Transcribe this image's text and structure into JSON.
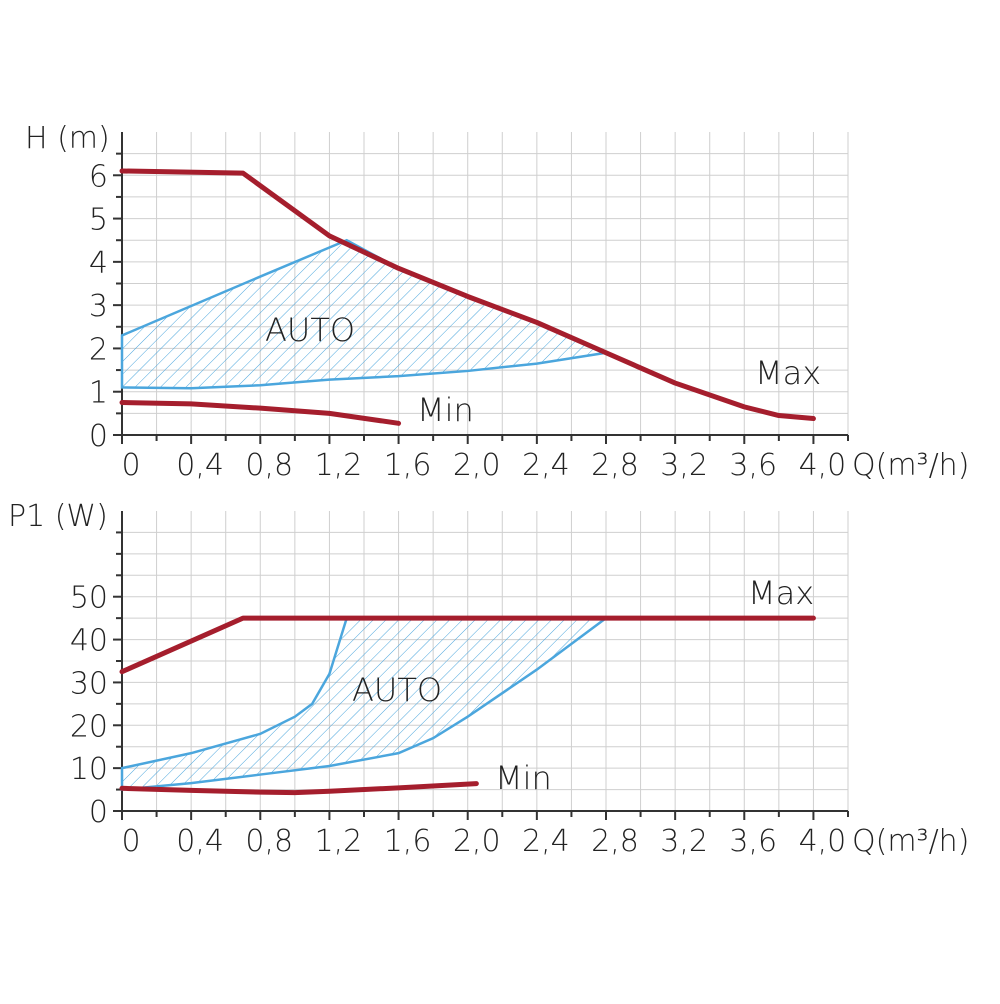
{
  "chart_data": [
    {
      "type": "line",
      "y_label": "H (m)",
      "x_label": "Q(m³/h)",
      "xlim": [
        0,
        4.2
      ],
      "xticks": [
        0,
        {
          "value": 0.4,
          "label": "0,4"
        },
        {
          "value": 0.8,
          "label": "0,8"
        },
        {
          "value": 1.2,
          "label": "1,2"
        },
        {
          "value": 1.6,
          "label": "1,6"
        },
        {
          "value": 2.0,
          "label": "2,0"
        },
        {
          "value": 2.4,
          "label": "2,4"
        },
        {
          "value": 2.8,
          "label": "2,8"
        },
        {
          "value": 3.2,
          "label": "3,2"
        },
        {
          "value": 3.6,
          "label": "3,6"
        },
        {
          "value": 4.0,
          "label": "4,0"
        }
      ],
      "minor_xticks": [
        0.2,
        0.6,
        1.0,
        1.4,
        1.8,
        2.2,
        2.6,
        3.0,
        3.4,
        3.8,
        4.2
      ],
      "ylim": [
        0,
        7
      ],
      "yticks": [
        0,
        1,
        2,
        3,
        4,
        5,
        6
      ],
      "minor_yticks": [
        0.5,
        1.5,
        2.5,
        3.5,
        4.5,
        5.5,
        6.5
      ],
      "grid": true,
      "series": [
        {
          "name": "AUTO",
          "color": "#4ba6dd",
          "fill": "hatch",
          "x": [
            0,
            0.4,
            0.8,
            1.3,
            1.6,
            2.0,
            2.4,
            2.8,
            2.4,
            2.0,
            1.6,
            1.2,
            0.8,
            0.4,
            0
          ],
          "values": [
            2.3,
            2.98,
            3.66,
            4.5,
            3.85,
            3.2,
            2.6,
            1.9,
            1.65,
            1.48,
            1.36,
            1.28,
            1.15,
            1.08,
            1.1
          ]
        },
        {
          "name": "Min",
          "color": "#a51e2d",
          "x": [
            0,
            0.4,
            0.8,
            1.2,
            1.6
          ],
          "values": [
            0.75,
            0.72,
            0.62,
            0.5,
            0.27
          ]
        },
        {
          "name": "Max",
          "color": "#a51e2d",
          "x": [
            0,
            0.7,
            1.2,
            1.6,
            2.0,
            2.4,
            2.8,
            3.2,
            3.6,
            3.8,
            4.0
          ],
          "values": [
            6.1,
            6.05,
            4.6,
            3.85,
            3.2,
            2.6,
            1.9,
            1.2,
            0.65,
            0.45,
            0.38
          ]
        }
      ]
    },
    {
      "type": "line",
      "y_label": "P1 (W)",
      "x_label": "Q(m³/h)",
      "xlim": [
        0,
        4.2
      ],
      "xticks": [
        0,
        {
          "value": 0.4,
          "label": "0,4"
        },
        {
          "value": 0.8,
          "label": "0,8"
        },
        {
          "value": 1.2,
          "label": "1,2"
        },
        {
          "value": 1.6,
          "label": "1,6"
        },
        {
          "value": 2.0,
          "label": "2,0"
        },
        {
          "value": 2.4,
          "label": "2,4"
        },
        {
          "value": 2.8,
          "label": "2,8"
        },
        {
          "value": 3.2,
          "label": "3,2"
        },
        {
          "value": 3.6,
          "label": "3,6"
        },
        {
          "value": 4.0,
          "label": "4,0"
        }
      ],
      "minor_xticks": [
        0.2,
        0.6,
        1.0,
        1.4,
        1.8,
        2.2,
        2.6,
        3.0,
        3.4,
        3.8,
        4.2
      ],
      "ylim": [
        0,
        70
      ],
      "yticks": [
        0,
        10,
        20,
        30,
        40,
        50
      ],
      "minor_yticks": [
        5,
        15,
        25,
        35,
        45,
        55,
        60,
        65
      ],
      "grid": true,
      "series": [
        {
          "name": "AUTO",
          "color": "#4ba6dd",
          "fill": "hatch",
          "x": [
            0,
            0.4,
            0.8,
            1.0,
            1.1,
            1.2,
            1.3,
            2.8,
            2.4,
            2.0,
            1.8,
            1.6,
            1.2,
            0.8,
            0.4,
            0
          ],
          "values": [
            10,
            13.5,
            18,
            22,
            25,
            32,
            45,
            45,
            33,
            22,
            17,
            13.5,
            10.5,
            8.5,
            6.5,
            5
          ]
        },
        {
          "name": "Min",
          "color": "#a51e2d",
          "x": [
            0,
            0.4,
            0.8,
            1.0,
            1.2,
            1.6,
            2.05
          ],
          "values": [
            5.3,
            4.8,
            4.4,
            4.3,
            4.6,
            5.4,
            6.4
          ]
        },
        {
          "name": "Max",
          "color": "#a51e2d",
          "x": [
            0,
            0.7,
            4.0
          ],
          "values": [
            32.5,
            45,
            45
          ]
        }
      ]
    }
  ]
}
